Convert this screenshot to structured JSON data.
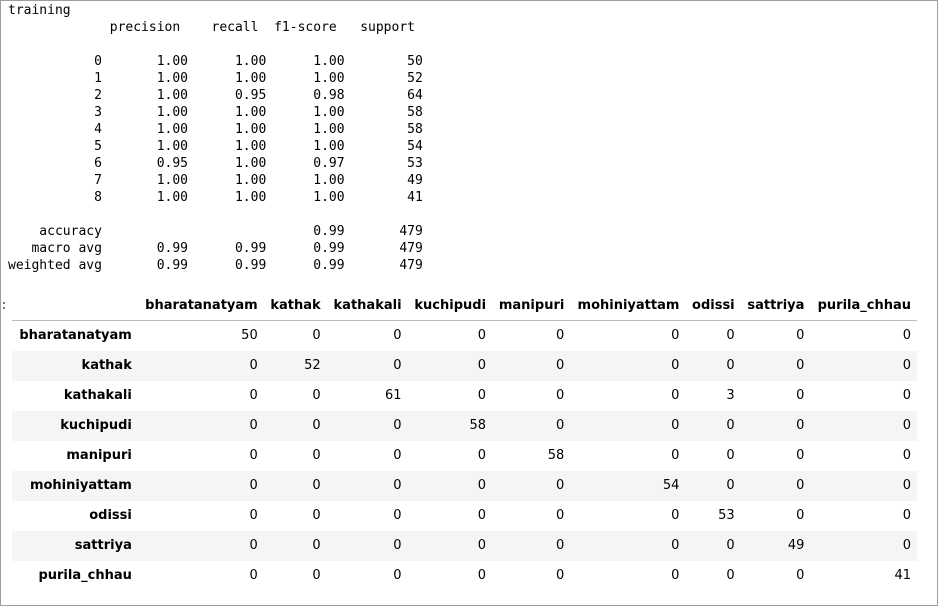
{
  "report": {
    "text": "training\n             precision    recall  f1-score   support\n\n           0       1.00      1.00      1.00        50\n           1       1.00      1.00      1.00        52\n           2       1.00      0.95      0.98        64\n           3       1.00      1.00      1.00        58\n           4       1.00      1.00      1.00        58\n           5       1.00      1.00      1.00        54\n           6       0.95      1.00      0.97        53\n           7       1.00      1.00      1.00        49\n           8       1.00      1.00      1.00        41\n\n    accuracy                           0.99       479\n   macro avg       0.99      0.99      0.99       479\nweighted avg       0.99      0.99      0.99       479"
  },
  "cut_marker": ":",
  "confusion_matrix": {
    "corner": "",
    "columns": [
      "bharatanatyam",
      "kathak",
      "kathakali",
      "kuchipudi",
      "manipuri",
      "mohiniyattam",
      "odissi",
      "sattriya",
      "purila_chhau"
    ],
    "rows": [
      {
        "label": "bharatanatyam",
        "values": [
          "50",
          "0",
          "0",
          "0",
          "0",
          "0",
          "0",
          "0",
          "0"
        ]
      },
      {
        "label": "kathak",
        "values": [
          "0",
          "52",
          "0",
          "0",
          "0",
          "0",
          "0",
          "0",
          "0"
        ]
      },
      {
        "label": "kathakali",
        "values": [
          "0",
          "0",
          "61",
          "0",
          "0",
          "0",
          "3",
          "0",
          "0"
        ]
      },
      {
        "label": "kuchipudi",
        "values": [
          "0",
          "0",
          "0",
          "58",
          "0",
          "0",
          "0",
          "0",
          "0"
        ]
      },
      {
        "label": "manipuri",
        "values": [
          "0",
          "0",
          "0",
          "0",
          "58",
          "0",
          "0",
          "0",
          "0"
        ]
      },
      {
        "label": "mohiniyattam",
        "values": [
          "0",
          "0",
          "0",
          "0",
          "0",
          "54",
          "0",
          "0",
          "0"
        ]
      },
      {
        "label": "odissi",
        "values": [
          "0",
          "0",
          "0",
          "0",
          "0",
          "0",
          "53",
          "0",
          "0"
        ]
      },
      {
        "label": "sattriya",
        "values": [
          "0",
          "0",
          "0",
          "0",
          "0",
          "0",
          "0",
          "49",
          "0"
        ]
      },
      {
        "label": "purila_chhau",
        "values": [
          "0",
          "0",
          "0",
          "0",
          "0",
          "0",
          "0",
          "0",
          "41"
        ]
      }
    ]
  }
}
